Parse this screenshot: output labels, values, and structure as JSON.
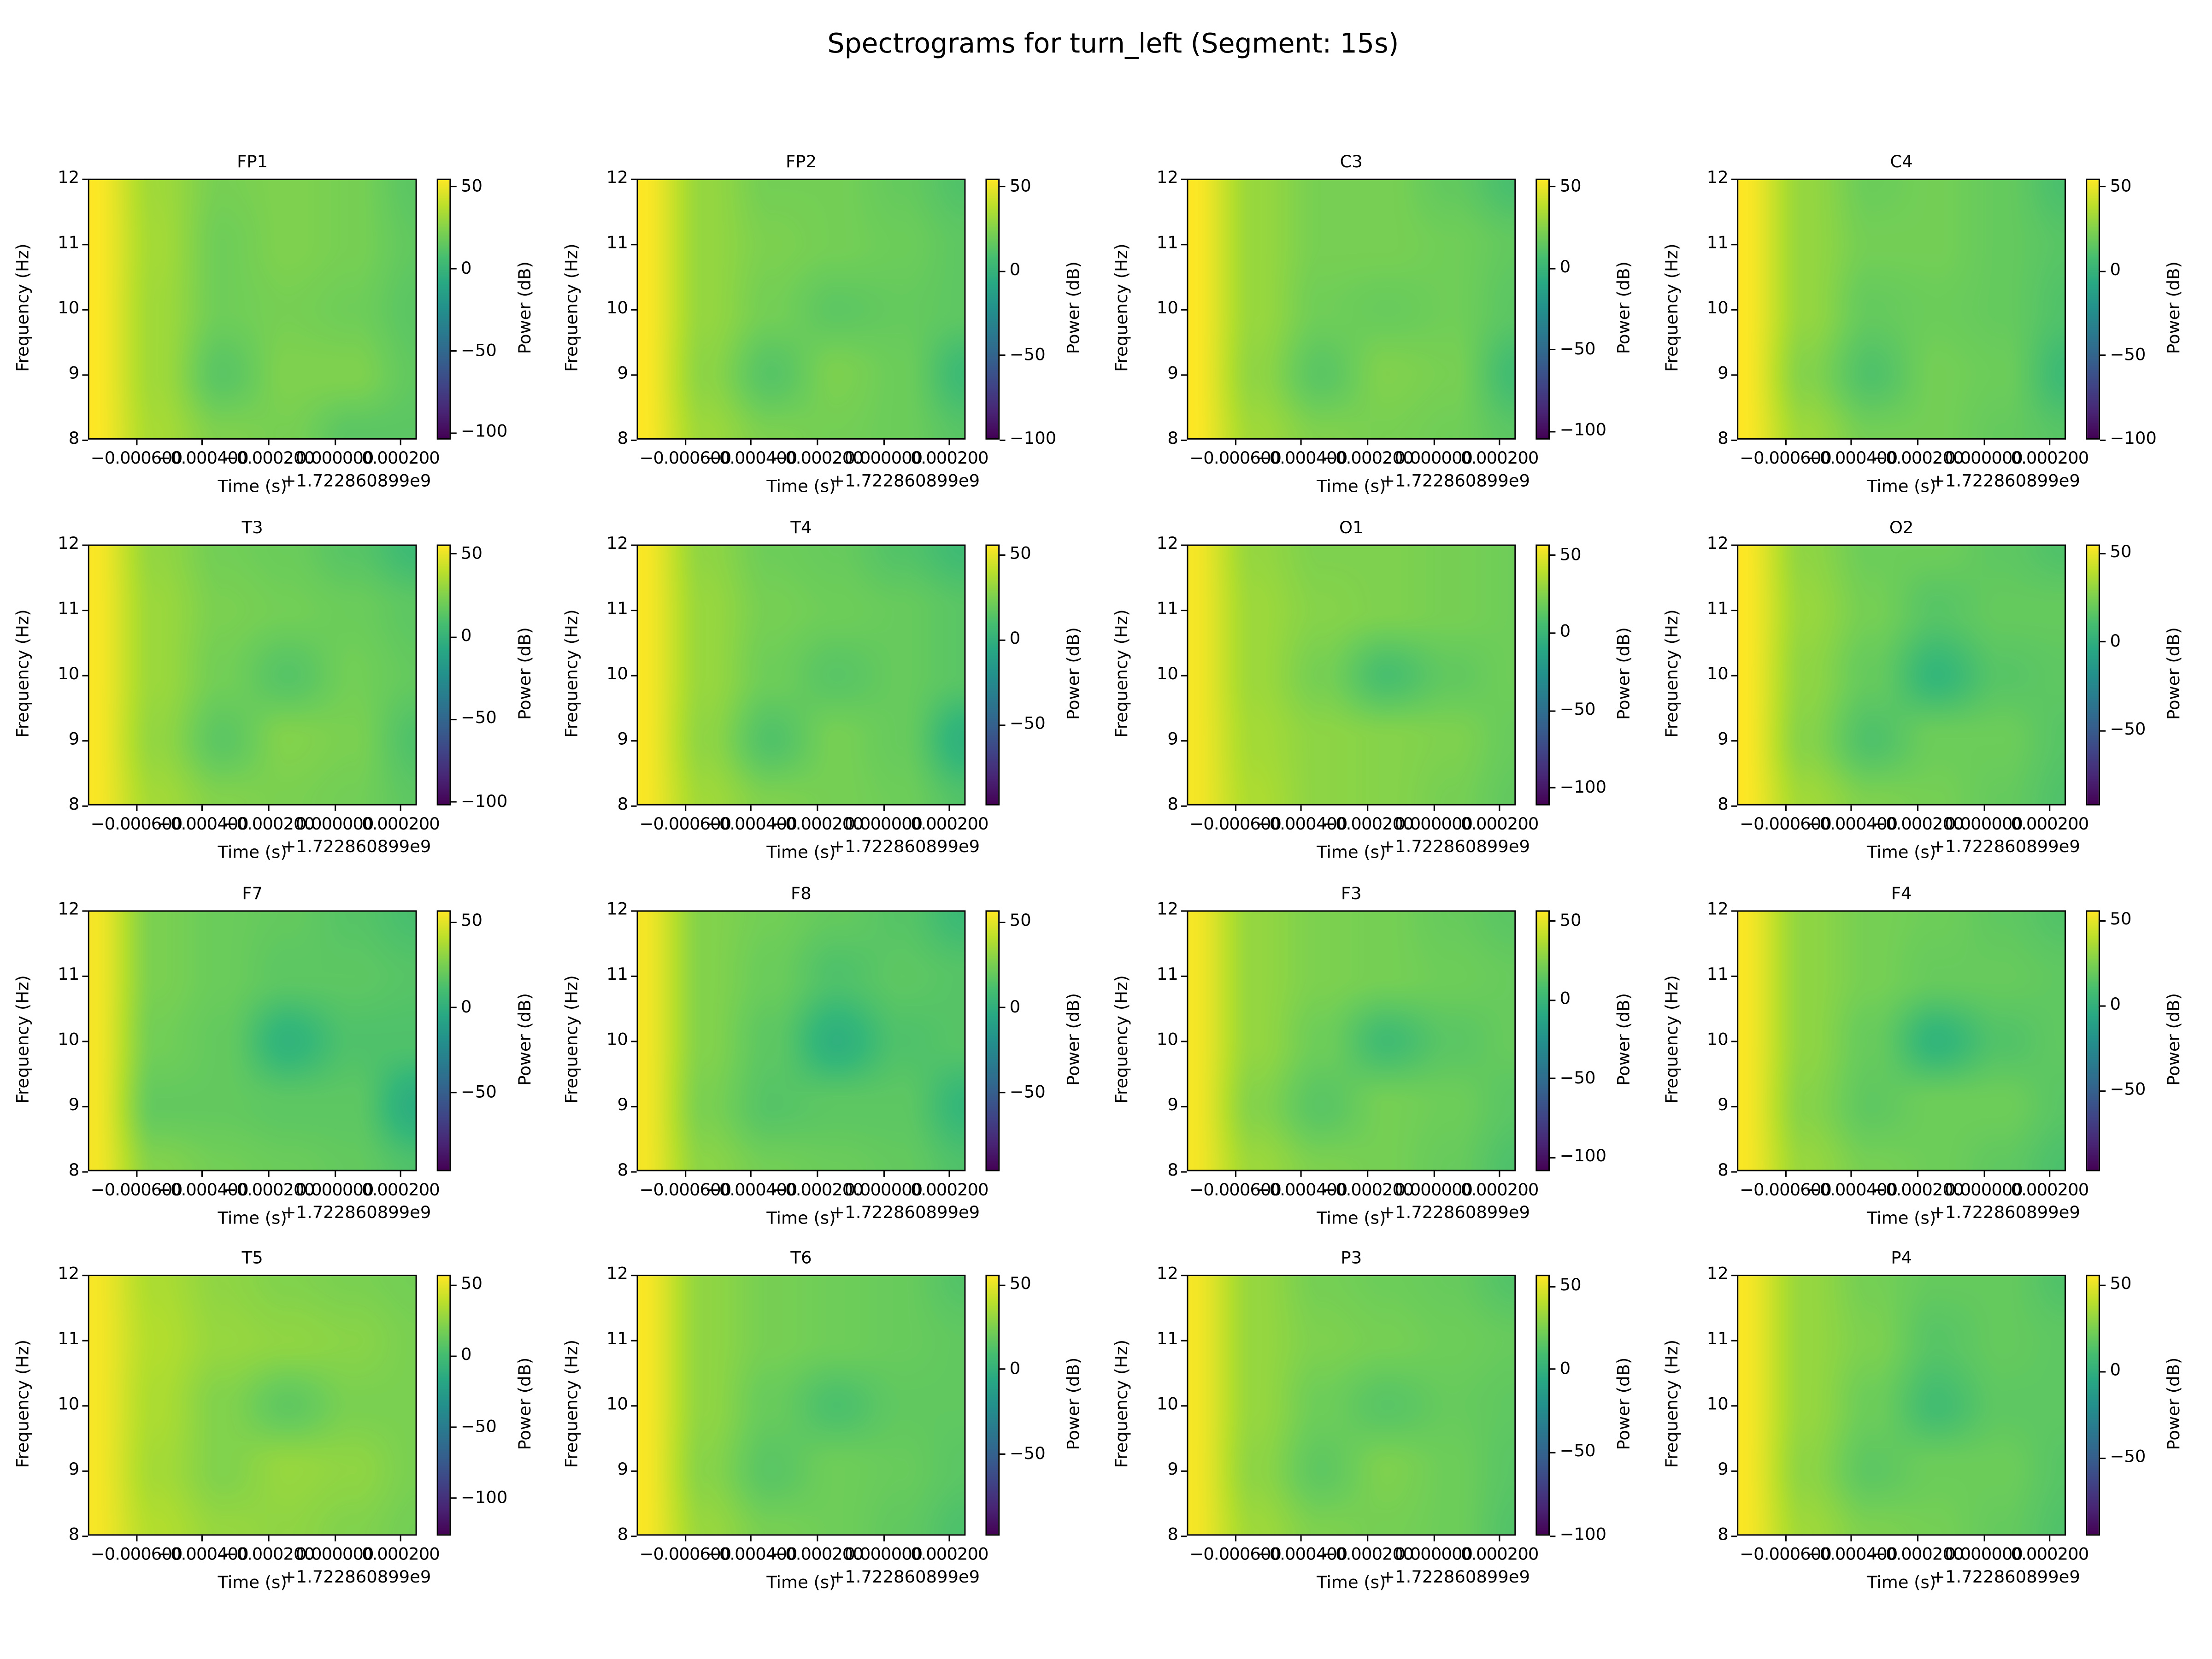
{
  "chart_data": {
    "type": "heatmap",
    "title": "Spectrograms for turn_left (Segment: 15s)",
    "colormap": "viridis",
    "xlabel": "Time (s)",
    "x_offset_label": "+1.722860899e9",
    "ylabel": "Frequency (Hz)",
    "colorbar_label": "Power (dB)",
    "xlim": [
      -0.000747,
      0.000249
    ],
    "ylim": [
      8,
      12
    ],
    "xticks": [
      -0.0006,
      -0.0004,
      -0.0002,
      0.0,
      0.0002
    ],
    "xtick_labels": [
      "−0.000600",
      "−0.000400",
      "−0.000200",
      "0.000000",
      "0.000200"
    ],
    "yticks": [
      8,
      9,
      10,
      11,
      12
    ],
    "ytick_labels": [
      "8",
      "9",
      "10",
      "11",
      "12"
    ],
    "grid_freqs": [
      12,
      11,
      10,
      9,
      8
    ],
    "grid_times": [
      -0.00074,
      -0.00054,
      -0.00034,
      -0.00014,
      6e-05,
      0.00025
    ],
    "panels": [
      {
        "name": "FP1",
        "vmin": -104,
        "vmax": 55,
        "cbticks": [
          50,
          0,
          -50,
          -100
        ],
        "power": [
          [
            55,
            32,
            22,
            24,
            22,
            14
          ],
          [
            55,
            33,
            20,
            24,
            22,
            16
          ],
          [
            55,
            32,
            20,
            22,
            20,
            14
          ],
          [
            55,
            32,
            14,
            24,
            24,
            16
          ],
          [
            55,
            34,
            24,
            22,
            14,
            14
          ]
        ]
      },
      {
        "name": "FP2",
        "vmin": -100,
        "vmax": 55,
        "cbticks": [
          50,
          0,
          -50,
          -100
        ],
        "power": [
          [
            55,
            30,
            22,
            22,
            18,
            12
          ],
          [
            55,
            30,
            24,
            22,
            20,
            16
          ],
          [
            55,
            30,
            22,
            16,
            18,
            16
          ],
          [
            55,
            28,
            14,
            24,
            20,
            6
          ],
          [
            55,
            32,
            24,
            22,
            20,
            14
          ]
        ]
      },
      {
        "name": "C3",
        "vmin": -105,
        "vmax": 55,
        "cbticks": [
          50,
          0,
          -50,
          -100
        ],
        "power": [
          [
            55,
            30,
            22,
            22,
            16,
            8
          ],
          [
            55,
            30,
            22,
            22,
            20,
            16
          ],
          [
            55,
            30,
            20,
            18,
            20,
            14
          ],
          [
            55,
            28,
            14,
            24,
            22,
            6
          ],
          [
            55,
            32,
            24,
            22,
            20,
            14
          ]
        ]
      },
      {
        "name": "C4",
        "vmin": -100,
        "vmax": 55,
        "cbticks": [
          50,
          0,
          -50,
          -100
        ],
        "power": [
          [
            55,
            30,
            20,
            22,
            18,
            10
          ],
          [
            55,
            30,
            22,
            22,
            18,
            14
          ],
          [
            55,
            30,
            18,
            20,
            18,
            12
          ],
          [
            55,
            26,
            12,
            22,
            20,
            6
          ],
          [
            55,
            32,
            22,
            22,
            18,
            14
          ]
        ]
      },
      {
        "name": "T3",
        "vmin": -102,
        "vmax": 56,
        "cbticks": [
          50,
          0,
          -50,
          -100
        ],
        "power": [
          [
            55,
            30,
            22,
            20,
            14,
            6
          ],
          [
            55,
            32,
            24,
            22,
            20,
            16
          ],
          [
            55,
            32,
            22,
            14,
            22,
            18
          ],
          [
            55,
            30,
            16,
            26,
            24,
            12
          ],
          [
            55,
            34,
            26,
            24,
            22,
            16
          ]
        ]
      },
      {
        "name": "T4",
        "vmin": -97,
        "vmax": 56,
        "cbticks": [
          50,
          0,
          -50
        ],
        "power": [
          [
            55,
            30,
            22,
            20,
            14,
            8
          ],
          [
            55,
            32,
            24,
            22,
            20,
            16
          ],
          [
            55,
            32,
            22,
            16,
            20,
            16
          ],
          [
            55,
            30,
            14,
            24,
            20,
            2
          ],
          [
            55,
            34,
            26,
            24,
            22,
            14
          ]
        ]
      },
      {
        "name": "O1",
        "vmin": -111,
        "vmax": 57,
        "cbticks": [
          50,
          0,
          -50,
          -100
        ],
        "power": [
          [
            55,
            30,
            24,
            24,
            22,
            20
          ],
          [
            55,
            32,
            26,
            24,
            22,
            20
          ],
          [
            55,
            32,
            22,
            8,
            16,
            20
          ],
          [
            55,
            34,
            28,
            26,
            24,
            18
          ],
          [
            55,
            36,
            28,
            26,
            22,
            16
          ]
        ]
      },
      {
        "name": "O2",
        "vmin": -92,
        "vmax": 55,
        "cbticks": [
          50,
          0,
          -50
        ],
        "power": [
          [
            55,
            30,
            22,
            22,
            18,
            14
          ],
          [
            55,
            32,
            24,
            16,
            20,
            20
          ],
          [
            55,
            30,
            20,
            6,
            16,
            18
          ],
          [
            55,
            28,
            14,
            22,
            22,
            16
          ],
          [
            55,
            34,
            26,
            24,
            20,
            14
          ]
        ]
      },
      {
        "name": "F7",
        "vmin": -96,
        "vmax": 57,
        "cbticks": [
          50,
          0,
          -50
        ],
        "power": [
          [
            55,
            26,
            22,
            20,
            16,
            12
          ],
          [
            55,
            26,
            22,
            18,
            18,
            16
          ],
          [
            55,
            24,
            20,
            4,
            14,
            14
          ],
          [
            55,
            20,
            20,
            18,
            18,
            0
          ],
          [
            55,
            28,
            24,
            22,
            20,
            14
          ]
        ]
      },
      {
        "name": "F8",
        "vmin": -96,
        "vmax": 57,
        "cbticks": [
          50,
          0,
          -50
        ],
        "power": [
          [
            55,
            28,
            24,
            20,
            16,
            8
          ],
          [
            55,
            28,
            22,
            14,
            18,
            16
          ],
          [
            55,
            28,
            18,
            2,
            14,
            16
          ],
          [
            55,
            26,
            16,
            18,
            18,
            6
          ],
          [
            55,
            30,
            24,
            22,
            20,
            14
          ]
        ]
      },
      {
        "name": "F3",
        "vmin": -109,
        "vmax": 57,
        "cbticks": [
          50,
          0,
          -50,
          -100
        ],
        "power": [
          [
            55,
            30,
            24,
            22,
            18,
            14
          ],
          [
            55,
            30,
            24,
            22,
            20,
            18
          ],
          [
            55,
            30,
            20,
            6,
            14,
            18
          ],
          [
            55,
            26,
            14,
            22,
            20,
            14
          ],
          [
            55,
            32,
            24,
            22,
            18,
            10
          ]
        ]
      },
      {
        "name": "F4",
        "vmin": -97,
        "vmax": 56,
        "cbticks": [
          50,
          0,
          -50
        ],
        "power": [
          [
            55,
            30,
            24,
            22,
            18,
            14
          ],
          [
            55,
            30,
            24,
            20,
            20,
            18
          ],
          [
            55,
            30,
            20,
            4,
            14,
            18
          ],
          [
            55,
            28,
            18,
            22,
            22,
            16
          ],
          [
            55,
            32,
            24,
            22,
            18,
            12
          ]
        ]
      },
      {
        "name": "T5",
        "vmin": -126,
        "vmax": 57,
        "cbticks": [
          50,
          0,
          -50,
          -100
        ],
        "power": [
          [
            55,
            34,
            26,
            22,
            20,
            18
          ],
          [
            55,
            36,
            28,
            26,
            24,
            20
          ],
          [
            55,
            34,
            22,
            12,
            20,
            20
          ],
          [
            55,
            32,
            22,
            28,
            26,
            20
          ],
          [
            55,
            36,
            28,
            26,
            22,
            18
          ]
        ]
      },
      {
        "name": "T6",
        "vmin": -98,
        "vmax": 56,
        "cbticks": [
          50,
          0,
          -50
        ],
        "power": [
          [
            55,
            30,
            24,
            22,
            20,
            14
          ],
          [
            55,
            30,
            24,
            22,
            20,
            18
          ],
          [
            55,
            30,
            20,
            12,
            18,
            18
          ],
          [
            55,
            28,
            16,
            22,
            20,
            16
          ],
          [
            55,
            32,
            24,
            22,
            18,
            12
          ]
        ]
      },
      {
        "name": "P3",
        "vmin": -100,
        "vmax": 57,
        "cbticks": [
          50,
          0,
          -50,
          -100
        ],
        "power": [
          [
            55,
            32,
            24,
            22,
            20,
            14
          ],
          [
            55,
            32,
            26,
            24,
            22,
            20
          ],
          [
            55,
            32,
            22,
            16,
            20,
            18
          ],
          [
            55,
            30,
            18,
            26,
            22,
            16
          ],
          [
            55,
            34,
            26,
            24,
            22,
            14
          ]
        ]
      },
      {
        "name": "P4",
        "vmin": -95,
        "vmax": 56,
        "cbticks": [
          50,
          0,
          -50
        ],
        "power": [
          [
            55,
            32,
            24,
            20,
            20,
            14
          ],
          [
            55,
            32,
            26,
            16,
            20,
            18
          ],
          [
            55,
            32,
            22,
            10,
            18,
            18
          ],
          [
            55,
            30,
            18,
            22,
            22,
            16
          ],
          [
            55,
            34,
            26,
            24,
            20,
            14
          ]
        ]
      }
    ]
  }
}
